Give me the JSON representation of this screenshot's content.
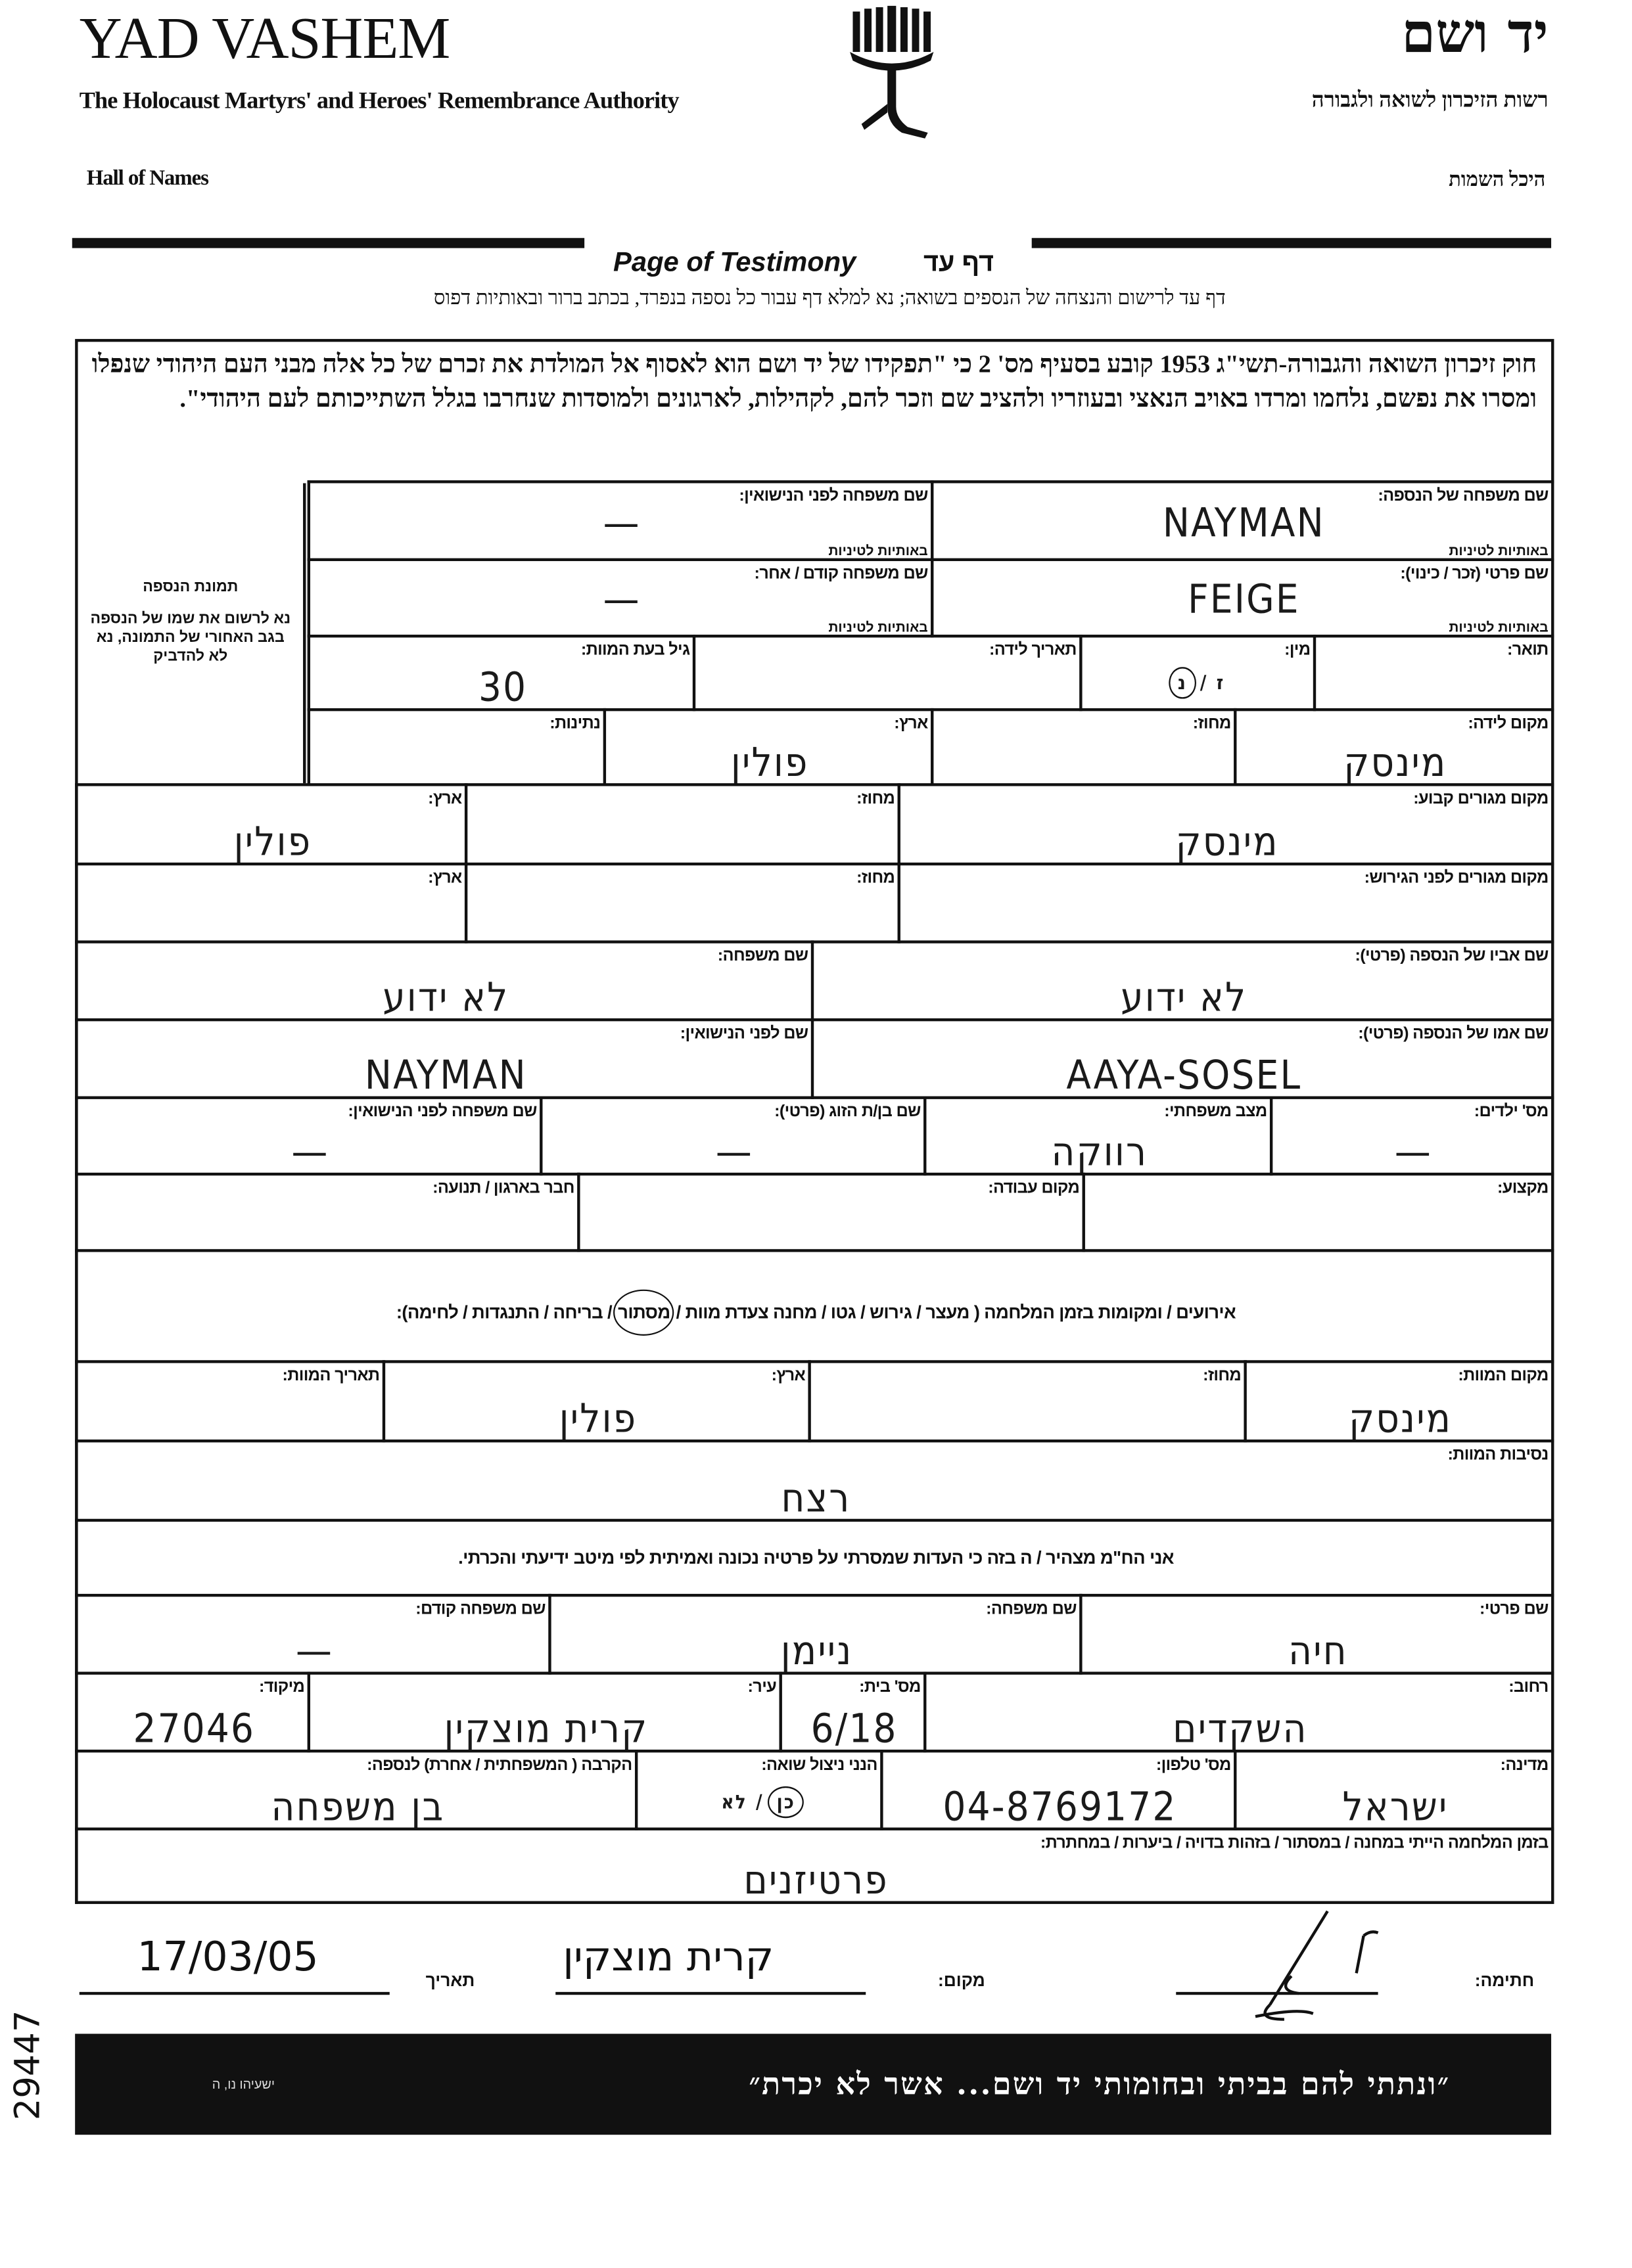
{
  "header": {
    "org_en": "YAD VASHEM",
    "org_en_sub": "The Holocaust Martyrs' and Heroes' Remembrance Authority",
    "hall_en": "Hall of Names",
    "org_he": "יד ושם",
    "org_he_sub": "רשות הזיכרון לשואה ולגבורה",
    "hall_he": "היכל השמות",
    "logo": "yad-vashem-menorah-logo"
  },
  "title_en": "Page of Testimony",
  "title_he": "דף עד",
  "instructions": "דף עד לרישום והנצחה של הנספים בשואה; נא למלא דף עבור כל נספה בנפרד, בכתב ברור ובאותיות דפוס",
  "law_text": "חוק זיכרון השואה והגבורה-תשי\"ג 1953 קובע בסעיף מס' 2 כי \"תפקידו של יד ושם הוא לאסוף אל המולדת את זכרם של כל אלה מבני העם היהודי שנפלו ומסרו את נפשם, נלחמו ומרדו באויב הנאצי ובעוזריו ולהציב שם וזכר להם, לקהילות, לארגונים ולמוסדות שנחרבו בגלל השתייכותם לעם היהודי\".",
  "photo_box": {
    "title": "תמונת הנספה",
    "note": "נא לרשום את שמו של הנספה בגב האחורי של התמונה, נא לא להדביק"
  },
  "form": {
    "rows": [
      {
        "cells": [
          {
            "label": "שם משפחה של הנספה:",
            "sub": "באותיות לטיניות",
            "value": "NAYMAN"
          },
          {
            "label": "שם משפחה לפני הנישואין:",
            "sub": "באותיות לטיניות",
            "value": "—"
          }
        ]
      },
      {
        "cells": [
          {
            "label": "שם פרטי (זכר / כינוי):",
            "sub": "באותיות לטיניות",
            "value": "FEIGE"
          },
          {
            "label": "שם משפחה קודם / אחר:",
            "sub": "באותיות לטיניות",
            "value": "—"
          }
        ]
      },
      {
        "cells": [
          {
            "label": "תואר:",
            "value": ""
          },
          {
            "label": "מין:",
            "options": [
              "ז",
              "נ"
            ],
            "selected": "נ"
          },
          {
            "label": "תאריך לידה:",
            "value": ""
          },
          {
            "label": "גיל בעת המוות:",
            "value": "30"
          }
        ]
      },
      {
        "cells": [
          {
            "label": "מקום לידה:",
            "value": "מינסק"
          },
          {
            "label": "מחוז:",
            "value": ""
          },
          {
            "label": "ארץ:",
            "value": "פולין"
          },
          {
            "label": "נתינות:",
            "value": ""
          }
        ]
      },
      {
        "cells": [
          {
            "label": "מקום מגורים קבוע:",
            "value": "מינסק"
          },
          {
            "label": "מחוז:",
            "value": ""
          },
          {
            "label": "ארץ:",
            "value": "פולין"
          }
        ]
      },
      {
        "cells": [
          {
            "label": "מקום מגורים לפני הגירוש:",
            "value": ""
          },
          {
            "label": "מחוז:",
            "value": ""
          },
          {
            "label": "ארץ:",
            "value": ""
          }
        ]
      },
      {
        "cells": [
          {
            "label": "שם אביו של הנספה (פרטי):",
            "value": "לא ידוע"
          },
          {
            "label": "שם משפחה:",
            "value": "לא ידוע"
          }
        ]
      },
      {
        "cells": [
          {
            "label": "שם אמו של הנספה (פרטי):",
            "value": "AAYA-SOSEL"
          },
          {
            "label": "שם לפני הנישואין:",
            "value": "NAYMAN"
          }
        ]
      },
      {
        "cells": [
          {
            "label": "מס' ילדים:",
            "value": "—"
          },
          {
            "label": "מצב משפחתי:",
            "value": "רווקה"
          },
          {
            "label": "שם בן/ת הזוג (פרטי):",
            "value": "—"
          },
          {
            "label": "שם משפחה לפני הנישואין:",
            "value": "—"
          }
        ]
      },
      {
        "cells": [
          {
            "label": "מקצוע:",
            "value": ""
          },
          {
            "label": "מקום עבודה:",
            "value": ""
          },
          {
            "label": "חבר בארגון / תנועה:",
            "value": ""
          }
        ]
      },
      {
        "cells": [
          {
            "label_parts": [
              "אירועים / ומקומות בזמן המלחמה ( מעצר / גירוש / גטו / מחנה  צעדת מוות / ",
              "מסתור",
              " / בריחה / התנגדות / לחימה):"
            ],
            "circled": "מסתור"
          }
        ]
      },
      {
        "cells": [
          {
            "label": "מקום המוות:",
            "value": "מינסק"
          },
          {
            "label": "מחוז:",
            "value": ""
          },
          {
            "label": "ארץ:",
            "value": "פולין"
          },
          {
            "label": "תאריך המוות:",
            "value": ""
          }
        ]
      },
      {
        "cells": [
          {
            "label": "נסיבות המוות:",
            "value": "רצח"
          }
        ]
      },
      {
        "cells": [
          {
            "label": "אני הח\"מ מצהיר / ה בזה כי העדות שמסרתי על פרטיה נכונה ואמיתית לפי מיטב ידיעתי והכרתי."
          }
        ]
      },
      {
        "cells": [
          {
            "label": "שם פרטי:",
            "value": "חיה"
          },
          {
            "label": "שם משפחה:",
            "value": "ניימן"
          },
          {
            "label": "שם משפחה קודם:",
            "value": "—"
          }
        ]
      },
      {
        "cells": [
          {
            "label": "רחוב:",
            "value": "השקדים"
          },
          {
            "label": "מס' בית:",
            "value": "6/18"
          },
          {
            "label": "עיר:",
            "value": "קרית מוצקין"
          },
          {
            "label": "מיקוד:",
            "value": "27046"
          }
        ]
      },
      {
        "cells": [
          {
            "label": "מדינה:",
            "value": "ישראל"
          },
          {
            "label": "מס' טלפון:",
            "value": "04-8769172"
          },
          {
            "label": "הנני ניצול שואה:",
            "options": [
              "כן",
              "לא"
            ],
            "selected": "כן"
          },
          {
            "label": "הקרבה ( המשפחתית / אחרת) לנספה:",
            "value": "בן משפחה"
          }
        ]
      },
      {
        "cells": [
          {
            "label": "בזמן המלחמה הייתי במחנה / במסתור / בזהות בדויה / ביערות / במחתרת:",
            "value": "פרטיזנים"
          }
        ]
      }
    ]
  },
  "signature": {
    "signature_label": "חתימה:",
    "place_label": "מקום:",
    "place_value": "קרית מוצקין",
    "date_label": "תאריך",
    "date_value": "17/03/05"
  },
  "quote": {
    "text": "״ונתתי להם בביתי ובחומותי יד ושם... אשר לא יכרת״",
    "source": "ישעיהו נו, ה"
  },
  "archive_number": "29447"
}
